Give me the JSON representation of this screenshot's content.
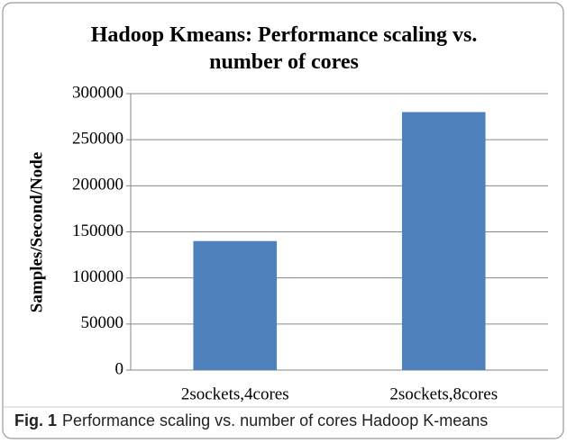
{
  "chart_data": {
    "type": "bar",
    "title": "Hadoop Kmeans: Performance scaling vs. number of cores",
    "y_label": "Samples/Second/Node",
    "categories": [
      "2sockets,4cores",
      "2sockets,8cores"
    ],
    "values": [
      140000,
      280000
    ],
    "color": "#4f81bd",
    "ylim": [
      0,
      300000
    ],
    "yticks": [
      0,
      50000,
      100000,
      150000,
      200000,
      250000,
      300000
    ],
    "grid": true
  },
  "caption": {
    "label": "Fig. 1",
    "text": "Performance scaling vs. number of cores Hadoop K-means"
  }
}
